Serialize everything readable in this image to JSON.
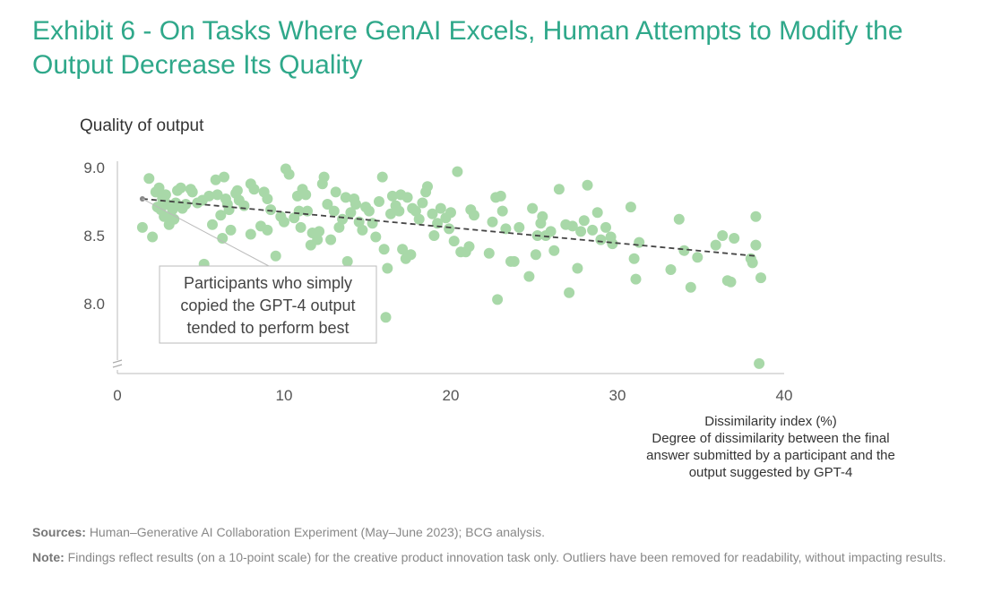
{
  "header": {
    "title": "Exhibit 6 - On Tasks Where GenAI Excels, Human Attempts to Modify the Output Decrease Its Quality"
  },
  "chart_data": {
    "type": "scatter",
    "title": "Exhibit 6 - On Tasks Where GenAI Excels, Human Attempts to Modify the Output Decrease Its Quality",
    "ylabel": "Quality of output",
    "xlabel": "Dissimilarity index (%)",
    "xlabel_description": "Degree of dissimilarity between the final answer submitted by a participant and the output suggested by GPT-4",
    "xlim": [
      0,
      40
    ],
    "ylim": [
      7.55,
      9.0
    ],
    "y_axis_break": true,
    "xticks": [
      "0",
      "10",
      "20",
      "30",
      "40"
    ],
    "yticks": [
      "9.0",
      "8.5",
      "8.0"
    ],
    "grid": false,
    "point_color": "#a8d8a8",
    "trend_color": "#444444",
    "trendline": {
      "x": [
        1.5,
        38.3
      ],
      "y": [
        8.77,
        8.35
      ]
    },
    "callout": {
      "lines": [
        "Participants who simply",
        "copied the GPT-4 output",
        "tended to perform best"
      ],
      "anchor": {
        "x": 1.5,
        "y": 8.77
      }
    },
    "points": [
      [
        1.5,
        8.56
      ],
      [
        1.9,
        8.92
      ],
      [
        2.1,
        8.49
      ],
      [
        2.3,
        8.82
      ],
      [
        2.4,
        8.71
      ],
      [
        2.5,
        8.85
      ],
      [
        2.6,
        8.69
      ],
      [
        2.7,
        8.77
      ],
      [
        2.8,
        8.64
      ],
      [
        2.9,
        8.8
      ],
      [
        3.0,
        8.73
      ],
      [
        3.1,
        8.58
      ],
      [
        3.2,
        8.63
      ],
      [
        3.3,
        8.69
      ],
      [
        3.4,
        8.62
      ],
      [
        3.5,
        8.74
      ],
      [
        3.6,
        8.83
      ],
      [
        3.8,
        8.85
      ],
      [
        3.9,
        8.7
      ],
      [
        4.1,
        8.73
      ],
      [
        4.4,
        8.84
      ],
      [
        4.5,
        8.82
      ],
      [
        4.8,
        8.74
      ],
      [
        5.1,
        8.76
      ],
      [
        5.2,
        8.29
      ],
      [
        5.5,
        8.79
      ],
      [
        5.7,
        8.58
      ],
      [
        5.9,
        8.91
      ],
      [
        6.0,
        8.8
      ],
      [
        6.2,
        8.65
      ],
      [
        6.3,
        8.48
      ],
      [
        6.4,
        8.93
      ],
      [
        6.5,
        8.77
      ],
      [
        6.6,
        8.73
      ],
      [
        6.7,
        8.69
      ],
      [
        6.8,
        8.54
      ],
      [
        7.1,
        8.81
      ],
      [
        7.2,
        8.83
      ],
      [
        7.3,
        8.76
      ],
      [
        7.6,
        8.72
      ],
      [
        8.0,
        8.88
      ],
      [
        8.0,
        8.51
      ],
      [
        8.2,
        8.84
      ],
      [
        8.6,
        8.57
      ],
      [
        8.8,
        8.82
      ],
      [
        9.0,
        8.77
      ],
      [
        9.0,
        8.54
      ],
      [
        9.2,
        8.69
      ],
      [
        9.5,
        8.35
      ],
      [
        9.8,
        8.64
      ],
      [
        10.0,
        8.6
      ],
      [
        10.1,
        8.99
      ],
      [
        10.3,
        8.95
      ],
      [
        10.6,
        8.63
      ],
      [
        10.8,
        8.79
      ],
      [
        10.9,
        8.68
      ],
      [
        11.0,
        8.56
      ],
      [
        11.1,
        8.84
      ],
      [
        11.3,
        8.8
      ],
      [
        11.4,
        8.68
      ],
      [
        11.6,
        8.43
      ],
      [
        11.7,
        8.52
      ],
      [
        12.0,
        8.47
      ],
      [
        12.1,
        8.53
      ],
      [
        12.3,
        8.88
      ],
      [
        12.4,
        8.93
      ],
      [
        12.6,
        8.73
      ],
      [
        12.8,
        8.47
      ],
      [
        13.0,
        8.68
      ],
      [
        13.1,
        8.82
      ],
      [
        13.3,
        8.56
      ],
      [
        13.5,
        8.62
      ],
      [
        13.7,
        8.78
      ],
      [
        13.8,
        8.31
      ],
      [
        14.0,
        8.67
      ],
      [
        14.2,
        8.77
      ],
      [
        14.3,
        8.73
      ],
      [
        14.5,
        8.6
      ],
      [
        14.7,
        8.54
      ],
      [
        14.9,
        8.71
      ],
      [
        15.1,
        8.68
      ],
      [
        15.3,
        8.59
      ],
      [
        15.5,
        8.49
      ],
      [
        15.7,
        8.75
      ],
      [
        15.9,
        8.93
      ],
      [
        16.0,
        8.4
      ],
      [
        16.1,
        7.9
      ],
      [
        16.2,
        8.26
      ],
      [
        16.4,
        8.66
      ],
      [
        16.5,
        8.79
      ],
      [
        16.7,
        8.72
      ],
      [
        16.9,
        8.68
      ],
      [
        17.0,
        8.8
      ],
      [
        17.1,
        8.4
      ],
      [
        17.3,
        8.33
      ],
      [
        17.4,
        8.78
      ],
      [
        17.6,
        8.36
      ],
      [
        17.7,
        8.7
      ],
      [
        17.9,
        8.68
      ],
      [
        18.1,
        8.62
      ],
      [
        18.3,
        8.74
      ],
      [
        18.5,
        8.82
      ],
      [
        18.6,
        8.86
      ],
      [
        18.9,
        8.66
      ],
      [
        19.0,
        8.5
      ],
      [
        19.2,
        8.59
      ],
      [
        19.4,
        8.7
      ],
      [
        19.7,
        8.63
      ],
      [
        19.9,
        8.55
      ],
      [
        20.0,
        8.67
      ],
      [
        20.2,
        8.46
      ],
      [
        20.4,
        8.97
      ],
      [
        20.6,
        8.38
      ],
      [
        20.9,
        8.38
      ],
      [
        21.1,
        8.42
      ],
      [
        21.2,
        8.69
      ],
      [
        21.4,
        8.65
      ],
      [
        22.3,
        8.37
      ],
      [
        22.5,
        8.6
      ],
      [
        22.7,
        8.78
      ],
      [
        22.8,
        8.03
      ],
      [
        23.0,
        8.79
      ],
      [
        23.1,
        8.68
      ],
      [
        23.3,
        8.55
      ],
      [
        23.6,
        8.31
      ],
      [
        23.8,
        8.31
      ],
      [
        24.1,
        8.56
      ],
      [
        24.7,
        8.2
      ],
      [
        24.9,
        8.7
      ],
      [
        25.1,
        8.36
      ],
      [
        25.2,
        8.5
      ],
      [
        25.4,
        8.59
      ],
      [
        25.5,
        8.64
      ],
      [
        25.7,
        8.5
      ],
      [
        26.0,
        8.53
      ],
      [
        26.2,
        8.39
      ],
      [
        26.5,
        8.84
      ],
      [
        26.9,
        8.58
      ],
      [
        27.1,
        8.08
      ],
      [
        27.3,
        8.57
      ],
      [
        27.6,
        8.26
      ],
      [
        27.8,
        8.53
      ],
      [
        28.0,
        8.61
      ],
      [
        28.2,
        8.87
      ],
      [
        28.5,
        8.54
      ],
      [
        28.8,
        8.67
      ],
      [
        29.0,
        8.47
      ],
      [
        29.3,
        8.56
      ],
      [
        29.6,
        8.49
      ],
      [
        29.7,
        8.44
      ],
      [
        30.8,
        8.71
      ],
      [
        31.0,
        8.33
      ],
      [
        31.1,
        8.18
      ],
      [
        31.3,
        8.45
      ],
      [
        33.2,
        8.25
      ],
      [
        33.7,
        8.62
      ],
      [
        34.0,
        8.39
      ],
      [
        34.4,
        8.12
      ],
      [
        34.8,
        8.34
      ],
      [
        35.9,
        8.43
      ],
      [
        36.3,
        8.5
      ],
      [
        36.6,
        8.17
      ],
      [
        36.8,
        8.16
      ],
      [
        37.0,
        8.48
      ],
      [
        38.0,
        8.33
      ],
      [
        38.1,
        8.3
      ],
      [
        38.3,
        8.64
      ],
      [
        38.3,
        8.43
      ],
      [
        38.5,
        7.56
      ],
      [
        38.6,
        8.19
      ]
    ]
  },
  "footer": {
    "sources_label": "Sources:",
    "sources_text": "Human–Generative AI Collaboration Experiment (May–June 2023); BCG analysis.",
    "note_label": "Note:",
    "note_text": "Findings reflect results (on a 10-point scale) for the creative product innovation task only. Outliers have been removed for readability, without impacting results."
  }
}
